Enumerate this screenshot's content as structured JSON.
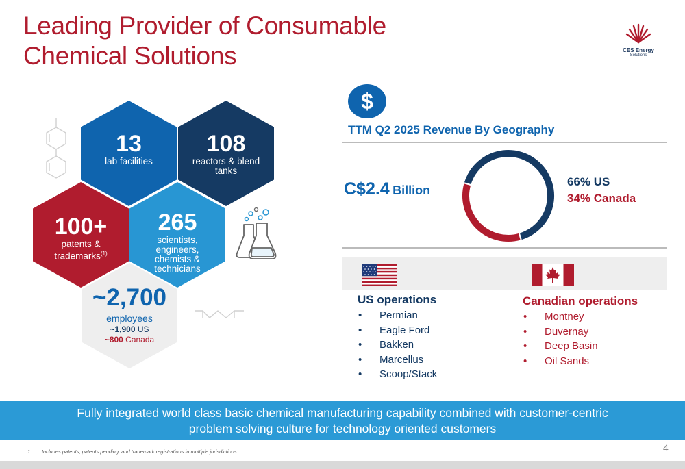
{
  "title_line1": "Leading Provider of Consumable",
  "title_line2": "Chemical Solutions",
  "logo": {
    "name": "CES Energy",
    "sub": "Solutions"
  },
  "hexes": {
    "labs": {
      "value": "13",
      "label": "lab facilities"
    },
    "reactors": {
      "value": "108",
      "label": "reactors & blend tanks"
    },
    "patents": {
      "value": "100+",
      "label_line1": "patents &",
      "label_line2": "trademarks",
      "footnote_ref": "(1)"
    },
    "scientists": {
      "value": "265",
      "label": "scientists, engineers, chemists & technicians"
    },
    "employees": {
      "value": "~2,700",
      "label": "employees",
      "us_prefix": "~1,900",
      "us_suffix": "US",
      "ca_prefix": "~800",
      "ca_suffix": "Canada"
    }
  },
  "revenue": {
    "icon": "dollar-icon",
    "symbol": "$",
    "title": "TTM Q2 2025 Revenue By Geography",
    "total_amount": "C$2.4",
    "total_unit": "Billion",
    "split_us": "66% US",
    "split_ca": "34% Canada"
  },
  "chart_data": {
    "type": "pie",
    "title": "TTM Q2 2025 Revenue By Geography",
    "categories": [
      "US",
      "Canada"
    ],
    "values": [
      66,
      34
    ],
    "colors": [
      "#153a63",
      "#b01c2e"
    ]
  },
  "operations": {
    "us_title": "US operations",
    "us_items": [
      "Permian",
      "Eagle Ford",
      "Bakken",
      "Marcellus",
      "Scoop/Stack"
    ],
    "ca_title": "Canadian operations",
    "ca_items": [
      "Montney",
      "Duvernay",
      "Deep Basin",
      "Oil Sands"
    ]
  },
  "banner_line1": "Fully integrated world class basic chemical manufacturing capability combined with customer-centric",
  "banner_line2": "problem solving culture for technology oriented customers",
  "footnote": "1.       Includes patents, patents pending, and trademark registrations in multiple jurisdictions.",
  "page_number": "4",
  "colors": {
    "red": "#b01c2e",
    "navy": "#153a63",
    "blue": "#0f64ae",
    "light_blue": "#2896d3",
    "banner": "#2b9ad6"
  }
}
